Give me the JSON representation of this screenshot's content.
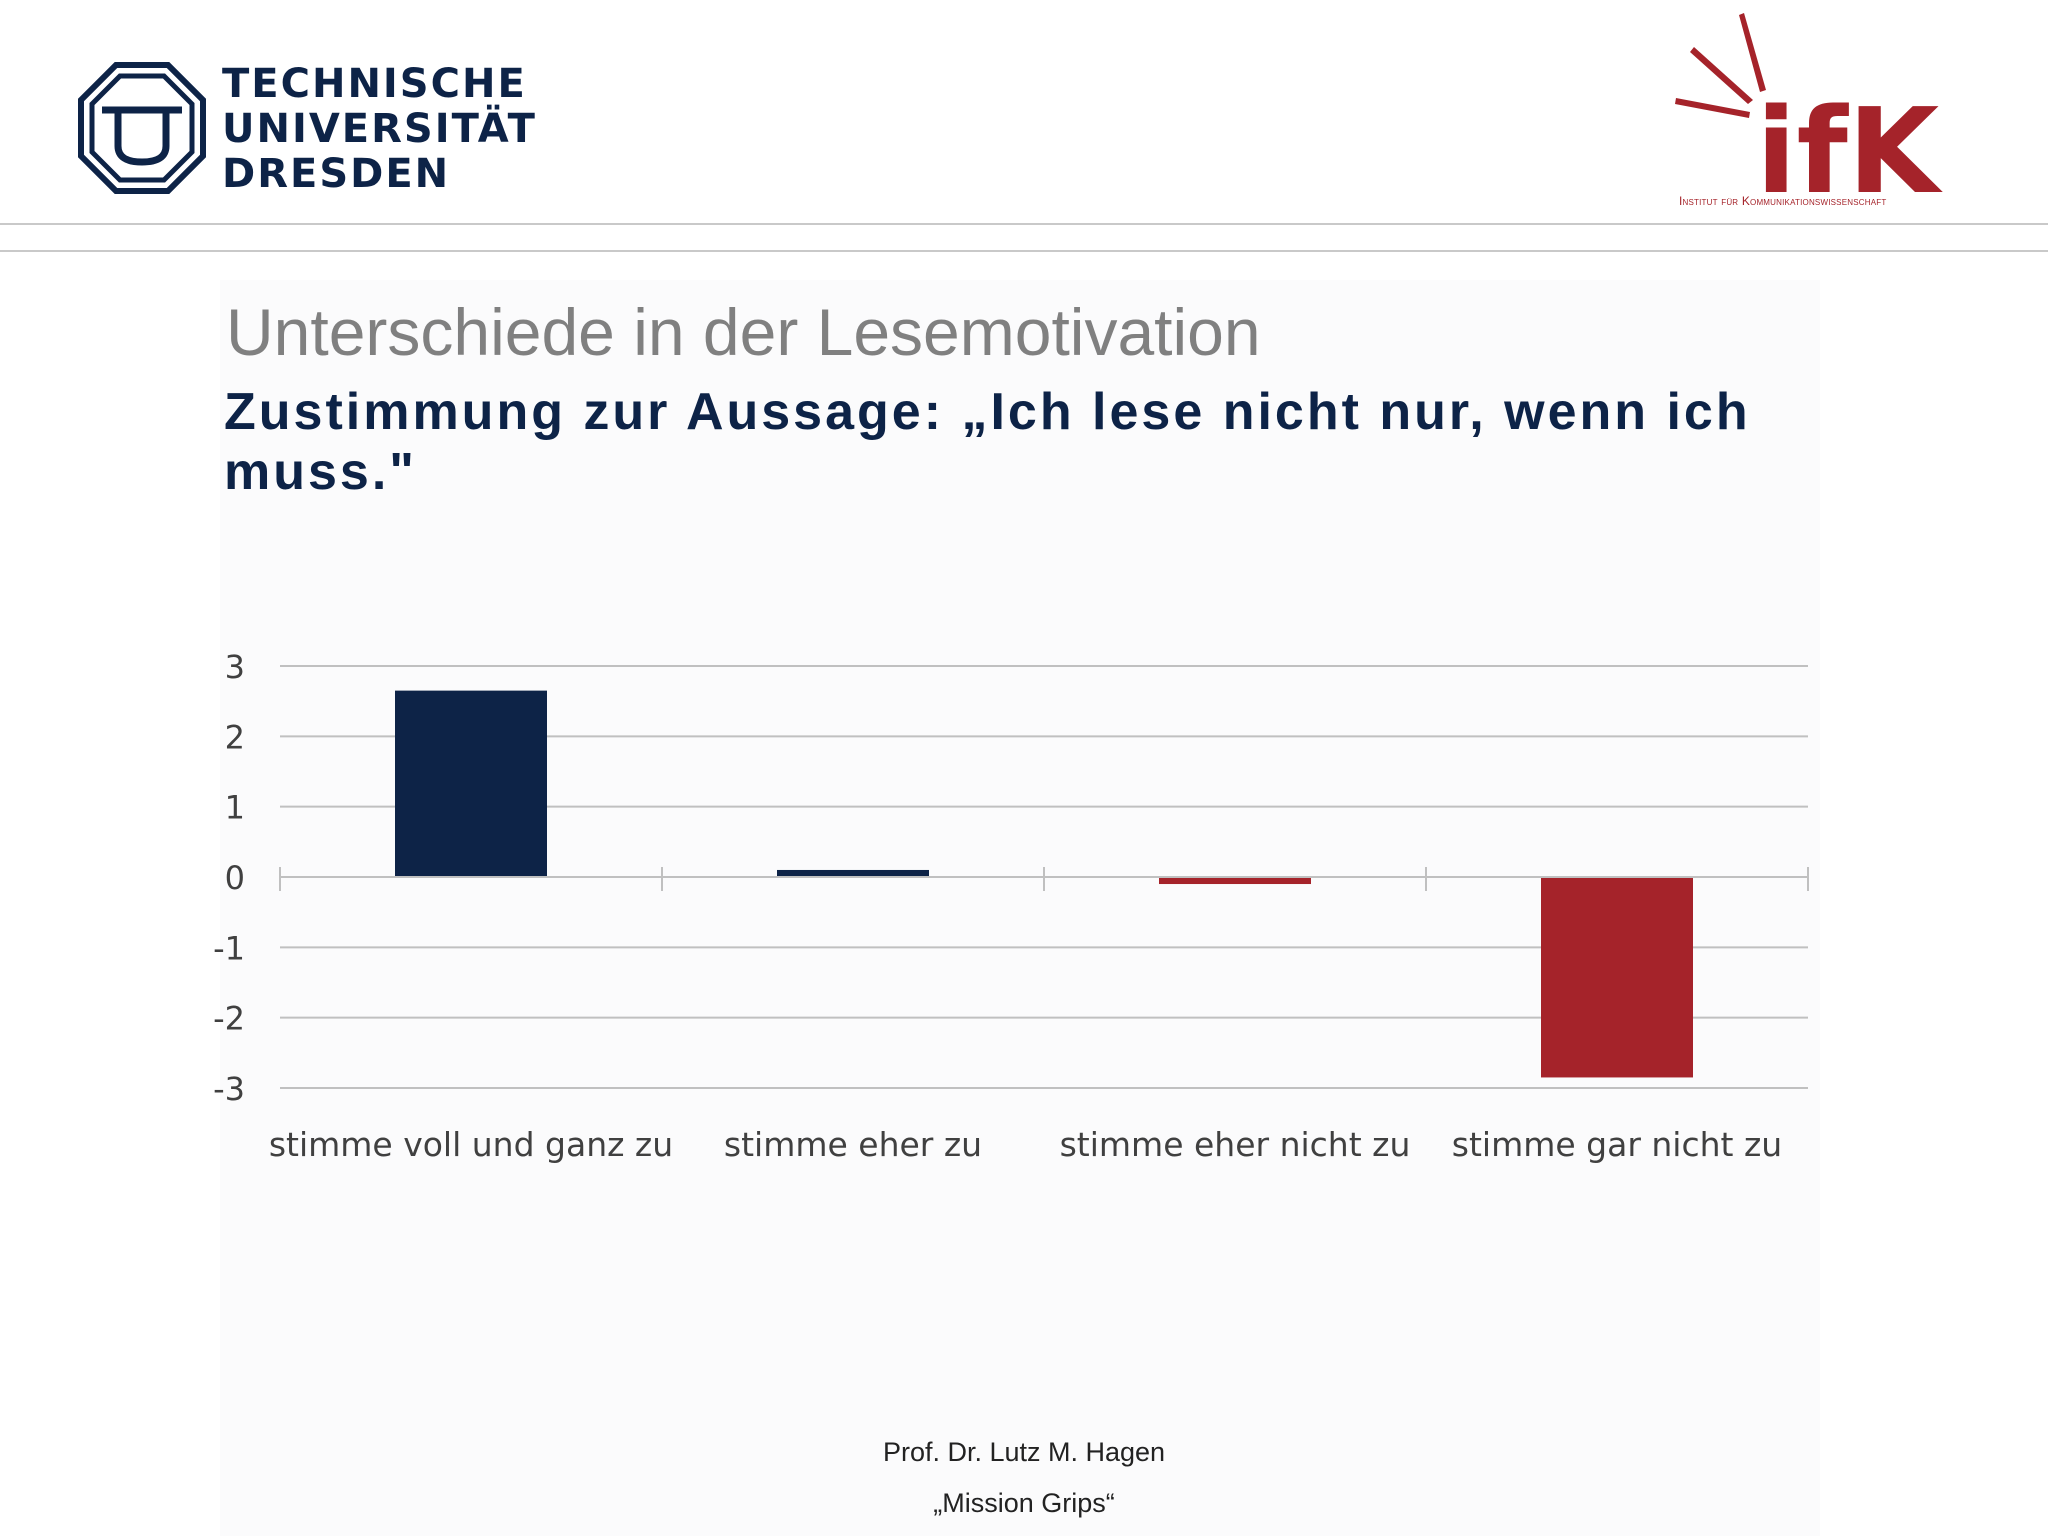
{
  "header": {
    "tud_logo_lines": [
      "TECHNISCHE",
      "UNIVERSITÄT",
      "DRESDEN"
    ],
    "ifk_logo_text": "ifK",
    "ifk_subtitle": "Institut für Kommunikationswissenschaft"
  },
  "slide": {
    "title": "Unterschiede in der Lesemotivation",
    "subtitle": "Zustimmung zur Aussage: „Ich lese nicht nur, wenn ich muss.\""
  },
  "colors": {
    "navy": "#0d2347",
    "red": "#a5232a",
    "title_gray": "#808080",
    "grid": "#c0c0c0"
  },
  "chart_data": {
    "type": "bar",
    "categories": [
      "stimme voll und ganz zu",
      "stimme eher zu",
      "stimme eher nicht zu",
      "stimme gar nicht zu"
    ],
    "values": [
      2.65,
      0.1,
      -0.1,
      -2.85
    ],
    "bar_colors": [
      "#0d2347",
      "#0d2347",
      "#a5232a",
      "#a5232a"
    ],
    "title": "",
    "xlabel": "",
    "ylabel": "",
    "ylim": [
      -3,
      3
    ],
    "yticks": [
      3,
      2,
      1,
      0,
      -1,
      -2,
      -3
    ],
    "grid": true,
    "legend": "none"
  },
  "footer": {
    "author": "Prof. Dr. Lutz M. Hagen",
    "project": "„Mission Grips“"
  }
}
